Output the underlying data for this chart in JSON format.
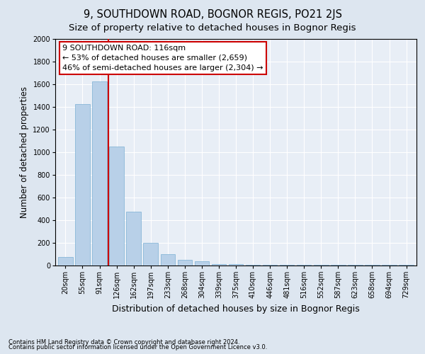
{
  "title": "9, SOUTHDOWN ROAD, BOGNOR REGIS, PO21 2JS",
  "subtitle": "Size of property relative to detached houses in Bognor Regis",
  "xlabel": "Distribution of detached houses by size in Bognor Regis",
  "ylabel": "Number of detached properties",
  "categories": [
    "20sqm",
    "55sqm",
    "91sqm",
    "126sqm",
    "162sqm",
    "197sqm",
    "233sqm",
    "268sqm",
    "304sqm",
    "339sqm",
    "375sqm",
    "410sqm",
    "446sqm",
    "481sqm",
    "516sqm",
    "552sqm",
    "587sqm",
    "623sqm",
    "658sqm",
    "694sqm",
    "729sqm"
  ],
  "values": [
    75,
    1425,
    1625,
    1050,
    475,
    200,
    100,
    50,
    35,
    15,
    10,
    5,
    5,
    5,
    5,
    5,
    5,
    5,
    5,
    5,
    5
  ],
  "bar_color": "#b8d0e8",
  "bar_edge_color": "#7aafd4",
  "vline_x": 2.5,
  "vline_color": "#cc0000",
  "annotation_line1": "9 SOUTHDOWN ROAD: 116sqm",
  "annotation_line2": "← 53% of detached houses are smaller (2,659)",
  "annotation_line3": "46% of semi-detached houses are larger (2,304) →",
  "annotation_box_color": "#ffffff",
  "annotation_box_edge": "#cc0000",
  "footer1": "Contains HM Land Registry data © Crown copyright and database right 2024.",
  "footer2": "Contains public sector information licensed under the Open Government Licence v3.0.",
  "ylim": [
    0,
    2000
  ],
  "yticks": [
    0,
    200,
    400,
    600,
    800,
    1000,
    1200,
    1400,
    1600,
    1800,
    2000
  ],
  "bg_color": "#dde6f0",
  "plot_bg_color": "#e8eef6",
  "title_fontsize": 10.5,
  "subtitle_fontsize": 9.5,
  "tick_fontsize": 7,
  "ylabel_fontsize": 8.5,
  "xlabel_fontsize": 9,
  "annot_fontsize": 8,
  "footer_fontsize": 6
}
